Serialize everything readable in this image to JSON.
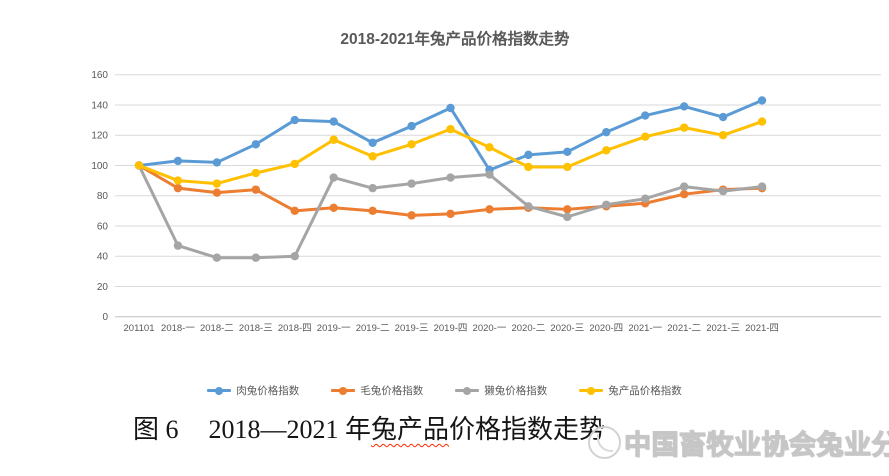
{
  "chart_data": {
    "type": "line",
    "title": "2018-2021年兔产品价格指数走势",
    "xlabel": "",
    "ylabel": "",
    "ylim": [
      0,
      160
    ],
    "y_ticks": [
      0,
      20,
      40,
      60,
      80,
      100,
      120,
      140,
      160
    ],
    "grid": true,
    "legend_position": "bottom",
    "categories": [
      "201101",
      "2018-一",
      "2018-二",
      "2018-三",
      "2018-四",
      "2019-一",
      "2019-二",
      "2019-三",
      "2019-四",
      "2020-一",
      "2020-二",
      "2020-三",
      "2020-四",
      "2021-一",
      "2021-二",
      "2021-三",
      "2021-四"
    ],
    "series": [
      {
        "name": "肉兔价格指数",
        "color": "#5B9BD5",
        "values": [
          100,
          103,
          102,
          114,
          130,
          129,
          115,
          126,
          138,
          97,
          107,
          109,
          122,
          133,
          139,
          132,
          143
        ]
      },
      {
        "name": "毛兔价格指数",
        "color": "#ED7D31",
        "values": [
          100,
          85,
          82,
          84,
          70,
          72,
          70,
          67,
          68,
          71,
          72,
          71,
          73,
          75,
          81,
          84,
          85
        ]
      },
      {
        "name": "獭兔价格指数",
        "color": "#A5A5A5",
        "values": [
          100,
          47,
          39,
          39,
          40,
          92,
          85,
          88,
          92,
          94,
          73,
          66,
          74,
          78,
          86,
          83,
          86
        ]
      },
      {
        "name": "兔产品价格指数",
        "color": "#FFC000",
        "values": [
          100,
          90,
          88,
          95,
          101,
          117,
          106,
          114,
          124,
          112,
          99,
          99,
          110,
          119,
          125,
          120,
          129
        ]
      }
    ],
    "axis_colors": {
      "gridline": "#D9D9D9",
      "axis_line": "#BFBFBF",
      "tick_label": "#595959"
    }
  },
  "caption": {
    "fig_label": "图 6",
    "part1": "2018—2021 年",
    "underlined": "兔产品",
    "part2": "价格指数走势"
  },
  "watermark": {
    "text": "中国畜牧业协会兔业分会"
  }
}
